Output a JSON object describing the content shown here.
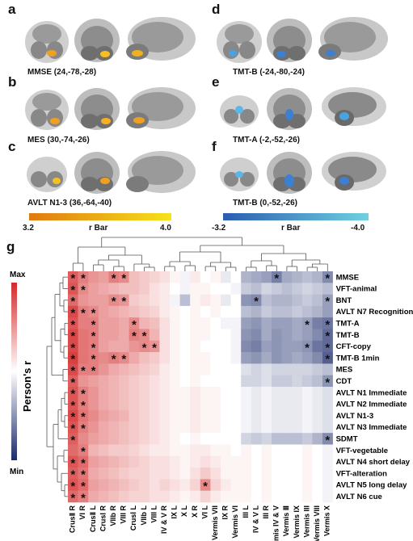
{
  "panels": [
    {
      "label": "a",
      "title": "MMSE (24,-78,-28)",
      "effect": "positive"
    },
    {
      "label": "b",
      "title": "MES (30,-74,-26)",
      "effect": "positive"
    },
    {
      "label": "c",
      "title": "AVLT N1-3 (36,-64,-40)",
      "effect": "positive"
    },
    {
      "label": "d",
      "title": "TMT-B (-24,-80,-24)",
      "effect": "negative"
    },
    {
      "label": "e",
      "title": "TMT-A (-2,-52,-26)",
      "effect": "negative"
    },
    {
      "label": "f",
      "title": "TMT-B (0,-52,-26)",
      "effect": "negative"
    }
  ],
  "colorbar_pos": {
    "min": "3.2",
    "label": "r Bar",
    "max": "4.0",
    "colors": [
      "#e07a10",
      "#f5e21a"
    ]
  },
  "colorbar_neg": {
    "min": "-3.2",
    "label": "r Bar",
    "max": "-4.0",
    "colors": [
      "#2a5db0",
      "#6fd1e0"
    ]
  },
  "heatmap": {
    "label": "g",
    "legend_title": "Person's r",
    "legend_max": "Max",
    "legend_min": "Min",
    "colors": {
      "max": "#d42a2a",
      "mid": "#ffffff",
      "min": "#1b2a6b"
    },
    "rows": [
      "MMSE",
      "VFT-animal",
      "BNT",
      "AVLT N7 Recognition",
      "TMT-A",
      "TMT-B",
      "CFT-copy",
      "TMT-B 1min",
      "MES",
      "CDT",
      "AVLT N1 Immediate",
      "AVLT N2 Immediate",
      "AVLT N1-3",
      "AVLT N3 Immediate",
      "SDMT",
      "VFT-vegetable",
      "AVLT N4 short delay",
      "VFT-alteration",
      "AVLT N5 long delay",
      "AVLT N6 cue"
    ],
    "cols": [
      "CrusⅡ R",
      "VI R",
      "CrusⅡ L",
      "CrusⅠ R",
      "VIIb R",
      "VIII R",
      "CrusⅠ L",
      "VIIb L",
      "VIII L",
      "IV & V R",
      "IX L",
      "X L",
      "X R",
      "VI L",
      "Vermis VII",
      "IX R",
      "Vermis VI",
      "III L",
      "IV & V L",
      "III R",
      "Vermis IV & V",
      "Vermis Ⅲ",
      "Vermis IX",
      "Vermis III",
      "Vermis VIII",
      "Vermis X"
    ],
    "values": [
      [
        0.75,
        0.6,
        0.5,
        0.45,
        0.6,
        0.55,
        0.3,
        0.25,
        0.2,
        0.15,
        0.05,
        -0.05,
        0.1,
        0.0,
        0.05,
        -0.1,
        0.0,
        -0.35,
        -0.4,
        -0.45,
        -0.6,
        -0.4,
        -0.35,
        -0.3,
        -0.35,
        -0.55
      ],
      [
        0.8,
        0.55,
        0.45,
        0.4,
        0.35,
        0.3,
        0.3,
        0.25,
        0.15,
        0.1,
        0.0,
        -0.05,
        0.05,
        0.05,
        0.0,
        0.0,
        -0.05,
        -0.25,
        -0.3,
        -0.2,
        -0.25,
        -0.3,
        -0.25,
        -0.2,
        -0.25,
        -0.3
      ],
      [
        0.7,
        0.5,
        0.45,
        0.45,
        0.55,
        0.5,
        0.25,
        0.2,
        0.15,
        0.1,
        -0.05,
        -0.3,
        0.05,
        0.1,
        0.05,
        -0.1,
        0.0,
        -0.5,
        -0.55,
        -0.3,
        -0.35,
        -0.35,
        -0.3,
        -0.25,
        -0.3,
        -0.45
      ],
      [
        0.85,
        0.6,
        0.55,
        0.45,
        0.4,
        0.35,
        0.3,
        0.25,
        0.2,
        0.1,
        0.05,
        0.0,
        0.05,
        0.0,
        0.05,
        0.0,
        0.0,
        -0.3,
        -0.35,
        -0.25,
        -0.3,
        -0.3,
        -0.25,
        -0.3,
        -0.35,
        -0.45
      ],
      [
        0.8,
        0.6,
        0.6,
        0.45,
        0.45,
        0.4,
        0.55,
        0.35,
        0.3,
        0.15,
        0.05,
        0.0,
        0.05,
        0.05,
        0.0,
        -0.05,
        -0.05,
        -0.45,
        -0.5,
        -0.4,
        -0.45,
        -0.45,
        -0.4,
        -0.45,
        -0.6,
        -0.65
      ],
      [
        0.85,
        0.65,
        0.6,
        0.45,
        0.45,
        0.4,
        0.6,
        0.55,
        0.35,
        0.15,
        0.05,
        0.0,
        0.05,
        0.05,
        0.0,
        0.0,
        -0.05,
        -0.5,
        -0.55,
        -0.4,
        -0.5,
        -0.45,
        -0.4,
        -0.45,
        -0.55,
        -0.7
      ],
      [
        0.85,
        0.65,
        0.6,
        0.45,
        0.4,
        0.4,
        0.5,
        0.55,
        0.5,
        0.15,
        0.05,
        0.0,
        0.05,
        0.0,
        0.0,
        0.0,
        -0.05,
        -0.55,
        -0.6,
        -0.45,
        -0.5,
        -0.45,
        -0.45,
        -0.5,
        -0.65,
        -0.7
      ],
      [
        0.9,
        0.65,
        0.6,
        0.55,
        0.6,
        0.55,
        0.4,
        0.3,
        0.25,
        0.15,
        0.05,
        0.0,
        0.05,
        0.05,
        0.0,
        0.0,
        -0.05,
        -0.45,
        -0.5,
        -0.4,
        -0.5,
        -0.45,
        -0.4,
        -0.45,
        -0.55,
        -0.75
      ],
      [
        0.85,
        0.6,
        0.6,
        0.5,
        0.4,
        0.35,
        0.3,
        0.25,
        0.2,
        0.1,
        0.05,
        0.0,
        0.05,
        0.05,
        0.0,
        0.0,
        0.0,
        -0.15,
        -0.2,
        -0.15,
        -0.2,
        -0.2,
        -0.2,
        -0.2,
        -0.25,
        -0.3
      ],
      [
        0.75,
        0.5,
        0.45,
        0.4,
        0.35,
        0.3,
        0.25,
        0.2,
        0.15,
        0.1,
        0.05,
        0.0,
        0.05,
        0.0,
        0.0,
        0.0,
        0.0,
        -0.2,
        -0.2,
        -0.15,
        -0.25,
        -0.25,
        -0.2,
        -0.25,
        -0.3,
        -0.5
      ],
      [
        0.8,
        0.6,
        0.5,
        0.4,
        0.35,
        0.3,
        0.25,
        0.2,
        0.15,
        0.1,
        0.05,
        0.05,
        0.1,
        0.05,
        0.05,
        0.0,
        0.0,
        -0.05,
        -0.1,
        -0.05,
        -0.1,
        -0.1,
        -0.1,
        -0.05,
        -0.1,
        -0.15
      ],
      [
        0.8,
        0.6,
        0.5,
        0.4,
        0.35,
        0.3,
        0.25,
        0.2,
        0.15,
        0.1,
        0.05,
        0.05,
        0.1,
        0.05,
        0.05,
        0.0,
        0.0,
        -0.05,
        -0.1,
        -0.05,
        -0.1,
        -0.1,
        -0.1,
        -0.05,
        -0.1,
        -0.15
      ],
      [
        0.85,
        0.65,
        0.55,
        0.45,
        0.4,
        0.35,
        0.25,
        0.2,
        0.15,
        0.1,
        0.05,
        0.05,
        0.1,
        0.05,
        0.05,
        0.0,
        0.0,
        -0.05,
        -0.1,
        -0.05,
        -0.1,
        -0.1,
        -0.1,
        -0.05,
        -0.1,
        -0.15
      ],
      [
        0.8,
        0.6,
        0.5,
        0.4,
        0.35,
        0.3,
        0.25,
        0.2,
        0.15,
        0.1,
        0.05,
        0.05,
        0.1,
        0.05,
        0.05,
        0.0,
        0.0,
        -0.05,
        -0.1,
        -0.05,
        -0.1,
        -0.1,
        -0.1,
        -0.05,
        -0.1,
        -0.15
      ],
      [
        0.75,
        0.55,
        0.45,
        0.4,
        0.35,
        0.3,
        0.25,
        0.2,
        0.15,
        0.1,
        0.05,
        0.0,
        0.05,
        0.0,
        0.0,
        0.0,
        0.0,
        -0.2,
        -0.25,
        -0.2,
        -0.3,
        -0.3,
        -0.3,
        -0.25,
        -0.35,
        -0.55
      ],
      [
        0.7,
        0.6,
        0.35,
        0.3,
        0.25,
        0.25,
        0.2,
        0.15,
        0.1,
        0.1,
        0.05,
        0.05,
        0.1,
        0.1,
        0.05,
        0.05,
        0.0,
        0.05,
        0.0,
        0.05,
        0.0,
        0.0,
        0.0,
        0.05,
        0.0,
        -0.05
      ],
      [
        0.8,
        0.7,
        0.45,
        0.4,
        0.35,
        0.3,
        0.25,
        0.2,
        0.15,
        0.15,
        0.1,
        0.05,
        0.1,
        0.15,
        0.1,
        0.05,
        0.05,
        0.05,
        0.0,
        0.05,
        0.0,
        0.0,
        0.0,
        0.05,
        0.0,
        -0.05
      ],
      [
        0.75,
        0.65,
        0.4,
        0.35,
        0.3,
        0.25,
        0.2,
        0.2,
        0.15,
        0.15,
        0.1,
        0.05,
        0.15,
        0.25,
        0.15,
        0.05,
        0.05,
        0.05,
        0.0,
        0.05,
        0.0,
        0.0,
        0.0,
        0.05,
        0.0,
        -0.05
      ],
      [
        0.8,
        0.7,
        0.45,
        0.4,
        0.35,
        0.3,
        0.25,
        0.2,
        0.15,
        0.2,
        0.15,
        0.1,
        0.2,
        0.55,
        0.2,
        0.1,
        0.05,
        0.05,
        0.0,
        0.05,
        0.0,
        0.0,
        0.0,
        0.05,
        0.0,
        -0.05
      ],
      [
        0.7,
        0.6,
        0.4,
        0.35,
        0.3,
        0.25,
        0.2,
        0.2,
        0.15,
        0.15,
        0.1,
        0.05,
        0.1,
        0.2,
        0.1,
        0.05,
        0.05,
        0.05,
        0.0,
        0.05,
        0.0,
        0.0,
        0.0,
        0.05,
        0.0,
        -0.05
      ]
    ],
    "significant": [
      [
        0,
        0
      ],
      [
        0,
        1
      ],
      [
        0,
        4
      ],
      [
        0,
        5
      ],
      [
        0,
        20
      ],
      [
        0,
        25
      ],
      [
        1,
        0
      ],
      [
        1,
        1
      ],
      [
        2,
        0
      ],
      [
        2,
        4
      ],
      [
        2,
        5
      ],
      [
        2,
        18
      ],
      [
        2,
        25
      ],
      [
        3,
        0
      ],
      [
        3,
        1
      ],
      [
        3,
        2
      ],
      [
        4,
        0
      ],
      [
        4,
        2
      ],
      [
        4,
        6
      ],
      [
        4,
        23
      ],
      [
        4,
        25
      ],
      [
        5,
        0
      ],
      [
        5,
        2
      ],
      [
        5,
        6
      ],
      [
        5,
        7
      ],
      [
        5,
        25
      ],
      [
        6,
        0
      ],
      [
        6,
        2
      ],
      [
        6,
        7
      ],
      [
        6,
        8
      ],
      [
        6,
        23
      ],
      [
        6,
        25
      ],
      [
        7,
        0
      ],
      [
        7,
        2
      ],
      [
        7,
        4
      ],
      [
        7,
        5
      ],
      [
        7,
        25
      ],
      [
        8,
        0
      ],
      [
        8,
        1
      ],
      [
        8,
        2
      ],
      [
        9,
        0
      ],
      [
        9,
        25
      ],
      [
        10,
        0
      ],
      [
        10,
        1
      ],
      [
        11,
        0
      ],
      [
        11,
        1
      ],
      [
        12,
        0
      ],
      [
        12,
        1
      ],
      [
        13,
        0
      ],
      [
        13,
        1
      ],
      [
        14,
        0
      ],
      [
        14,
        25
      ],
      [
        15,
        1
      ],
      [
        16,
        0
      ],
      [
        16,
        1
      ],
      [
        17,
        0
      ],
      [
        17,
        1
      ],
      [
        18,
        0
      ],
      [
        18,
        1
      ],
      [
        18,
        13
      ],
      [
        19,
        0
      ],
      [
        19,
        1
      ]
    ]
  }
}
